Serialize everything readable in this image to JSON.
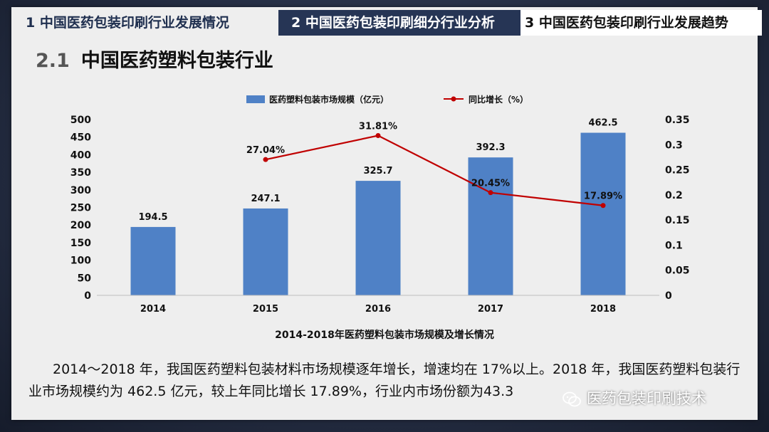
{
  "tabs": [
    {
      "label": "1  中国医药包装印刷行业发展情况"
    },
    {
      "label": "2  中国医药包装印刷细分行业分析"
    },
    {
      "label": "3  中国医药包装印刷行业发展趋势"
    }
  ],
  "section": {
    "number": "2.1",
    "title": "中国医药塑料包装行业"
  },
  "chart_data": {
    "type": "bar",
    "categories": [
      "2014",
      "2015",
      "2016",
      "2017",
      "2018"
    ],
    "series": [
      {
        "name": "医药塑料包装市场规模（亿元）",
        "type": "bar",
        "axis": "left",
        "color": "#4f81c6",
        "values": [
          194.5,
          247.1,
          325.7,
          392.3,
          462.5
        ],
        "labels": [
          "194.5",
          "247.1",
          "325.7",
          "392.3",
          "462.5"
        ]
      },
      {
        "name": "同比增长（%）",
        "type": "line",
        "axis": "right",
        "color": "#c00000",
        "values": [
          null,
          0.2704,
          0.3181,
          0.2045,
          0.1789
        ],
        "labels": [
          "",
          "27.04%",
          "31.81%",
          "20.45%",
          "17.89%"
        ]
      }
    ],
    "ylim_left": [
      0,
      500
    ],
    "yticks_left": [
      "0",
      "50",
      "100",
      "150",
      "200",
      "250",
      "300",
      "350",
      "400",
      "450",
      "500"
    ],
    "ylim_right": [
      0,
      0.35
    ],
    "yticks_right": [
      "0",
      "0.05",
      "0.1",
      "0.15",
      "0.2",
      "0.25",
      "0.3",
      "0.35"
    ],
    "legend_position": "top",
    "grid": false,
    "title": "2014-2018年医药塑料包装市场规模及增长情况"
  },
  "body_text": "2014～2018 年，我国医药塑料包装材料市场规模逐年增长，增速均在 17%以上。2018 年，我国医药塑料包装行业市场规模约为 462.5 亿元，较上年同比增长 17.89%，行业内市场份额为43.3",
  "watermark": {
    "text": "医药包装印刷技术",
    "icon": "wechat-icon"
  }
}
